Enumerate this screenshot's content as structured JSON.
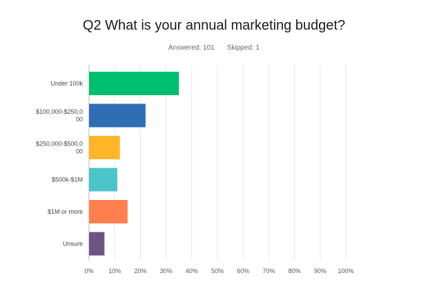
{
  "survey": {
    "question": "Q2 What is your annual marketing budget?",
    "answered_label": "Answered: 101",
    "skipped_label": "Skipped: 1"
  },
  "chart_data": {
    "type": "bar",
    "orientation": "horizontal",
    "categories": [
      [
        "Under 100k"
      ],
      [
        "$100,000-$250,0",
        "00"
      ],
      [
        "$250,000-$500,0",
        "00"
      ],
      [
        "$500k-$1M"
      ],
      [
        "$1M or more"
      ],
      [
        "Unsure"
      ]
    ],
    "values": [
      35,
      22,
      12,
      11,
      15,
      6
    ],
    "colors": [
      "#00bf6f",
      "#2f6eb5",
      "#ffb528",
      "#4cc5c8",
      "#ff7f4f",
      "#6d5487"
    ],
    "xlim": [
      0,
      100
    ],
    "x_ticks": [
      "0%",
      "10%",
      "20%",
      "30%",
      "40%",
      "50%",
      "60%",
      "70%",
      "80%",
      "90%",
      "100%"
    ],
    "grid": true,
    "legend": "none"
  }
}
